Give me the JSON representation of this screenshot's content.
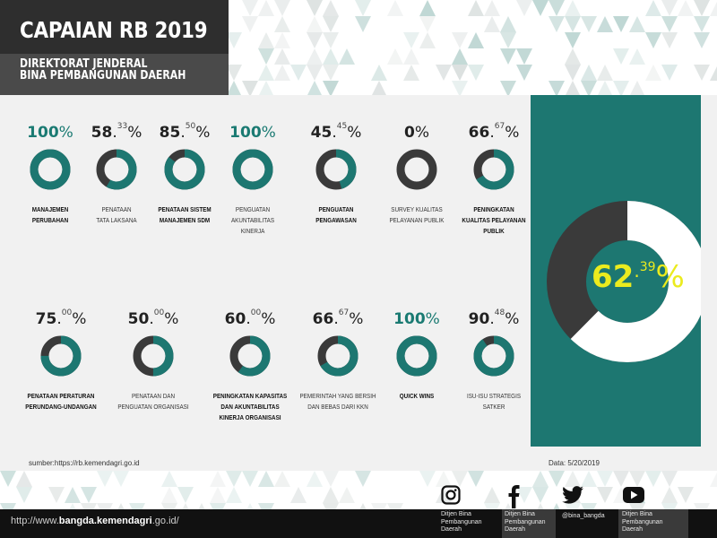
{
  "header": {
    "title": "CAPAIAN RB 2019",
    "subtitle_line1": "DIREKTORAT JENDERAL",
    "subtitle_line2": "BINA PEMBANGUNAN DAERAH"
  },
  "colors": {
    "teal": "#1d7771",
    "dark": "#3a3a3a",
    "accent_yellow": "#ebeb1e"
  },
  "metrics": [
    {
      "int": "100",
      "dec": "",
      "value": 100,
      "label1": "MANAJEMEN",
      "label2": "PERUBAHAN",
      "label3": "",
      "bold": true
    },
    {
      "int": "58",
      "dec": "33",
      "value": 58.33,
      "label1": "PENATAAN",
      "label2": "TATA LAKSANA",
      "label3": "",
      "bold": false
    },
    {
      "int": "85",
      "dec": "50",
      "value": 85.5,
      "label1": "PENATAAN SISTEM",
      "label2": "MANAJEMEN SDM",
      "label3": "",
      "bold": true
    },
    {
      "int": "100",
      "dec": "",
      "value": 100,
      "label1": "PENGUATAN",
      "label2": "AKUNTABILITAS",
      "label3": "KINERJA",
      "bold": false
    },
    {
      "int": "45",
      "dec": "45",
      "value": 45.45,
      "label1": "PENGUATAN",
      "label2": "PENGAWASAN",
      "label3": "",
      "bold": true
    },
    {
      "int": "0",
      "dec": "",
      "value": 0,
      "label1": "SURVEY KUALITAS",
      "label2": "PELAYANAN PUBLIK",
      "label3": "",
      "bold": false
    },
    {
      "int": "66",
      "dec": "67",
      "value": 66.67,
      "label1": "PENINGKATAN",
      "label2": "KUALITAS PELAYANAN",
      "label3": "PUBLIK",
      "bold": true
    },
    {
      "int": "75",
      "dec": "00",
      "value": 75,
      "label1": "PENATAAN PERATURAN",
      "label2": "PERUNDANG-UNDANGAN",
      "label3": "",
      "bold": true
    },
    {
      "int": "50",
      "dec": "00",
      "value": 50,
      "label1": "PENATAAN DAN",
      "label2": "PENGUATAN ORGANISASI",
      "label3": "",
      "bold": false
    },
    {
      "int": "60",
      "dec": "00",
      "value": 60,
      "label1": "PENINGKATAN KAPASITAS",
      "label2": "DAN AKUNTABILITAS",
      "label3": "KINERJA ORGANISASI",
      "bold": true
    },
    {
      "int": "66",
      "dec": "67",
      "value": 66.67,
      "label1": "PEMERINTAH YANG BERSIH",
      "label2": "DAN BEBAS DARI KKN",
      "label3": "",
      "bold": false
    },
    {
      "int": "100",
      "dec": "",
      "value": 100,
      "label1": "QUICK WINS",
      "label2": "",
      "label3": "",
      "bold": true
    },
    {
      "int": "90",
      "dec": "48",
      "value": 90.48,
      "label1": "ISU-ISU STRATEGIS",
      "label2": "SATKER",
      "label3": "",
      "bold": false
    }
  ],
  "overall": {
    "int": "62",
    "dec": "39",
    "value": 62.39
  },
  "source": "sumber:https://rb.kemendagri.go.id",
  "date": "Data: 5/20/2019",
  "footer": {
    "url_prefix": "http://www.",
    "url_domain": "bangda.kemendagri",
    "url_suffix": ".go.id/"
  },
  "social": [
    {
      "icon": "instagram-icon",
      "line1": "Ditjen Bina",
      "line2": "Pembangunan",
      "line3": "Daerah"
    },
    {
      "icon": "facebook-icon",
      "line1": "Ditjen Bina",
      "line2": "Pembangunan",
      "line3": "Daerah"
    },
    {
      "icon": "twitter-icon",
      "line1": "@bina_bangda",
      "line2": "",
      "line3": ""
    },
    {
      "icon": "youtube-icon",
      "line1": "Ditjen Bina",
      "line2": "Pembangunan",
      "line3": "Daerah"
    }
  ]
}
